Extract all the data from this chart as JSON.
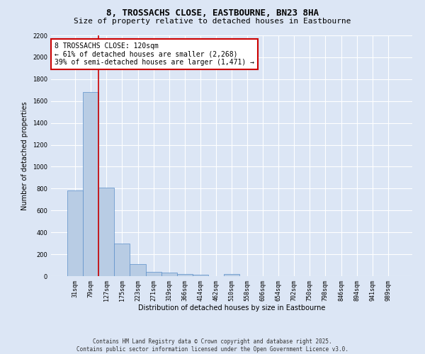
{
  "title": "8, TROSSACHS CLOSE, EASTBOURNE, BN23 8HA",
  "subtitle": "Size of property relative to detached houses in Eastbourne",
  "xlabel": "Distribution of detached houses by size in Eastbourne",
  "ylabel": "Number of detached properties",
  "categories": [
    "31sqm",
    "79sqm",
    "127sqm",
    "175sqm",
    "223sqm",
    "271sqm",
    "319sqm",
    "366sqm",
    "414sqm",
    "462sqm",
    "510sqm",
    "558sqm",
    "606sqm",
    "654sqm",
    "702sqm",
    "750sqm",
    "798sqm",
    "846sqm",
    "894sqm",
    "941sqm",
    "989sqm"
  ],
  "values": [
    780,
    1680,
    810,
    300,
    110,
    40,
    30,
    20,
    15,
    0,
    20,
    0,
    0,
    0,
    0,
    0,
    0,
    0,
    0,
    0,
    0
  ],
  "bar_color": "#b8cce4",
  "bar_edge_color": "#5b8fc9",
  "red_line_index": 1.5,
  "annotation_text": "8 TROSSACHS CLOSE: 120sqm\n← 61% of detached houses are smaller (2,268)\n39% of semi-detached houses are larger (1,471) →",
  "annotation_box_color": "#ffffff",
  "annotation_edge_color": "#cc0000",
  "ylim": [
    0,
    2200
  ],
  "yticks": [
    0,
    200,
    400,
    600,
    800,
    1000,
    1200,
    1400,
    1600,
    1800,
    2000,
    2200
  ],
  "background_color": "#dce6f5",
  "grid_color": "#ffffff",
  "footer_line1": "Contains HM Land Registry data © Crown copyright and database right 2025.",
  "footer_line2": "Contains public sector information licensed under the Open Government Licence v3.0.",
  "title_fontsize": 9,
  "subtitle_fontsize": 8,
  "axis_label_fontsize": 7,
  "tick_fontsize": 6,
  "red_line_color": "#cc0000",
  "annotation_fontsize": 7
}
